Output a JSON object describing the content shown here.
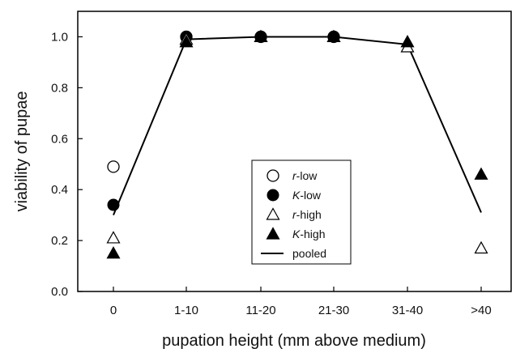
{
  "chart_data": {
    "type": "scatter",
    "title": "",
    "xlabel": "pupation height (mm above medium)",
    "ylabel": "viability of pupae",
    "categories": [
      "0",
      "1-10",
      "11-20",
      "21-30",
      "31-40",
      ">40"
    ],
    "ylim": [
      0.0,
      1.1
    ],
    "yticks": [
      "0.0",
      "0.2",
      "0.4",
      "0.6",
      "0.8",
      "1.0"
    ],
    "grid": false,
    "legend_position": "center-right",
    "series": [
      {
        "name": "r-low",
        "marker": "open-circle",
        "values": [
          0.49,
          1.0,
          1.0,
          1.0,
          null,
          null
        ]
      },
      {
        "name": "K-low",
        "marker": "filled-circle",
        "values": [
          0.34,
          1.0,
          1.0,
          1.0,
          null,
          null
        ]
      },
      {
        "name": "r-high",
        "marker": "open-triangle",
        "values": [
          0.21,
          0.99,
          1.0,
          1.0,
          0.96,
          0.17
        ]
      },
      {
        "name": "K-high",
        "marker": "filled-triangle",
        "values": [
          0.15,
          0.98,
          1.0,
          1.0,
          0.98,
          0.46
        ]
      },
      {
        "name": "pooled",
        "marker": "line",
        "values": [
          0.3,
          0.99,
          1.0,
          1.0,
          0.97,
          0.31
        ]
      }
    ]
  }
}
